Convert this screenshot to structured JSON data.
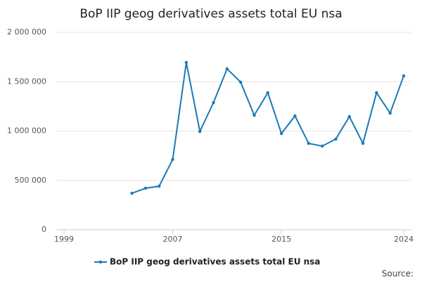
{
  "chart_data": {
    "type": "line",
    "title": "BoP IIP geog derivatives assets total EU nsa",
    "x": [
      2004,
      2005,
      2006,
      2007,
      2008,
      2009,
      2010,
      2011,
      2012,
      2013,
      2014,
      2015,
      2016,
      2017,
      2018,
      2019,
      2020,
      2021,
      2022,
      2023,
      2024
    ],
    "series": [
      {
        "name": "BoP IIP geog derivatives assets total EU nsa",
        "color": "#1a7ab8",
        "values": [
          370000,
          420000,
          441000,
          712000,
          1694000,
          996000,
          1288000,
          1630000,
          1495000,
          1160000,
          1388000,
          975000,
          1153000,
          875000,
          847000,
          918000,
          1146000,
          875000,
          1388000,
          1181000,
          1559000
        ]
      }
    ],
    "xlim": [
      1999,
      2024
    ],
    "xticks": [
      1999,
      2007,
      2015,
      2024
    ],
    "ylim": [
      0,
      2000000
    ],
    "yticks": [
      0,
      {
        "value": 500000,
        "label": "500 000"
      },
      {
        "value": 1000000,
        "label": "1 000 000"
      },
      {
        "value": 1500000,
        "label": "1 500 000"
      },
      {
        "value": 2000000,
        "label": "2 000 000"
      }
    ],
    "grid": true,
    "legend": "bottom",
    "source": "Source:"
  }
}
